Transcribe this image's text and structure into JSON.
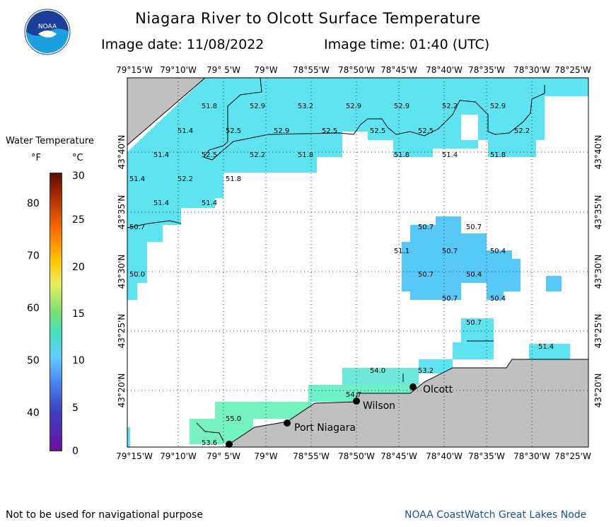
{
  "header": {
    "title": "Niagara River to Olcott Surface Temperature",
    "image_date": "Image date: 11/08/2022",
    "image_time": "Image time: 01:40 (UTC)"
  },
  "logo": {
    "text": "NOAA",
    "icon": "noaa-logo-icon"
  },
  "legend": {
    "title": "Water Temperature",
    "unit_f": "°F",
    "unit_c": "°C",
    "f_ticks": [
      "80",
      "70",
      "60",
      "50",
      "40"
    ],
    "c_ticks": [
      "30",
      "25",
      "20",
      "15",
      "10",
      "5",
      "0"
    ],
    "scale_c": [
      0,
      30
    ]
  },
  "axes": {
    "lon_labels": [
      "79°15'W",
      "79°10'W",
      "79° 5'W",
      "79°W",
      "78°55'W",
      "78°50'W",
      "78°45'W",
      "78°40'W",
      "78°35'W",
      "78°30'W",
      "78°25'W"
    ],
    "lat_labels": [
      "43°40'N",
      "43°35'N",
      "43°30'N",
      "43°25'N",
      "43°20'N"
    ]
  },
  "temperatures": [
    "51.8",
    "52.9",
    "53.2",
    "52.9",
    "52.9",
    "52.2",
    "52.9",
    "51.4",
    "52.5",
    "52.9",
    "52.5",
    "52.5",
    "52.5",
    "52.2",
    "51.4",
    "52.5",
    "52.2",
    "51.8",
    "51.8",
    "51.4",
    "51.8",
    "51.4",
    "52.2",
    "51.8",
    "51.4",
    "51.4",
    "50.7",
    "50.7",
    "50.7",
    "51.1",
    "50.7",
    "50.4",
    "50.0",
    "50.7",
    "50.4",
    "50.7",
    "50.4",
    "50.7",
    "51.4",
    "54.0",
    "53.2",
    "54.7",
    "55.0",
    "53.6"
  ],
  "cities": [
    "Olcott",
    "Wilson",
    "Port Niagara"
  ],
  "footer": {
    "left": "Not to be used for navigational purpose",
    "right": "NOAA CoastWatch Great Lakes Node"
  }
}
